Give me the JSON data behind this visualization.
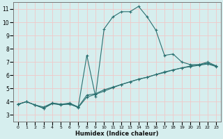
{
  "title": "",
  "xlabel": "Humidex (Indice chaleur)",
  "ylabel": "",
  "xlim": [
    -0.5,
    23.5
  ],
  "ylim": [
    2.5,
    11.5
  ],
  "yticks": [
    3,
    4,
    5,
    6,
    7,
    8,
    9,
    10,
    11
  ],
  "xticks": [
    0,
    1,
    2,
    3,
    4,
    5,
    6,
    7,
    8,
    9,
    10,
    11,
    12,
    13,
    14,
    15,
    16,
    17,
    18,
    19,
    20,
    21,
    22,
    23
  ],
  "bg_color": "#d6eeee",
  "line_color": "#2a7070",
  "grid_color": "#f0c8c8",
  "series": [
    {
      "x": [
        0,
        1,
        2,
        3,
        4,
        5,
        6,
        7,
        8,
        9,
        10,
        11,
        12,
        13,
        14,
        15,
        16,
        17,
        18,
        19,
        20,
        21,
        22,
        23
      ],
      "y": [
        3.8,
        4.0,
        3.75,
        3.6,
        3.9,
        3.8,
        3.8,
        3.6,
        7.5,
        4.4,
        9.5,
        10.4,
        10.8,
        10.8,
        11.2,
        10.4,
        9.4,
        7.5,
        7.6,
        7.0,
        6.8,
        6.8,
        7.0,
        6.7
      ]
    },
    {
      "x": [
        0,
        1,
        2,
        3,
        4,
        5,
        6,
        7,
        8,
        9,
        10,
        11,
        12,
        13,
        14,
        15,
        16,
        17,
        18,
        19,
        20,
        21,
        22,
        23
      ],
      "y": [
        3.8,
        4.0,
        3.75,
        3.5,
        3.9,
        3.8,
        3.9,
        3.6,
        4.5,
        4.6,
        4.9,
        5.1,
        5.3,
        5.5,
        5.7,
        5.85,
        6.05,
        6.2,
        6.4,
        6.55,
        6.7,
        6.8,
        6.9,
        6.7
      ]
    },
    {
      "x": [
        0,
        1,
        2,
        3,
        4,
        5,
        6,
        7,
        8,
        9,
        10,
        11,
        12,
        13,
        14,
        15,
        16,
        17,
        18,
        19,
        20,
        21,
        22,
        23
      ],
      "y": [
        3.8,
        4.0,
        3.75,
        3.5,
        3.85,
        3.75,
        3.85,
        3.55,
        4.35,
        4.55,
        4.8,
        5.05,
        5.3,
        5.5,
        5.7,
        5.85,
        6.05,
        6.25,
        6.4,
        6.55,
        6.65,
        6.75,
        6.85,
        6.65
      ]
    }
  ]
}
